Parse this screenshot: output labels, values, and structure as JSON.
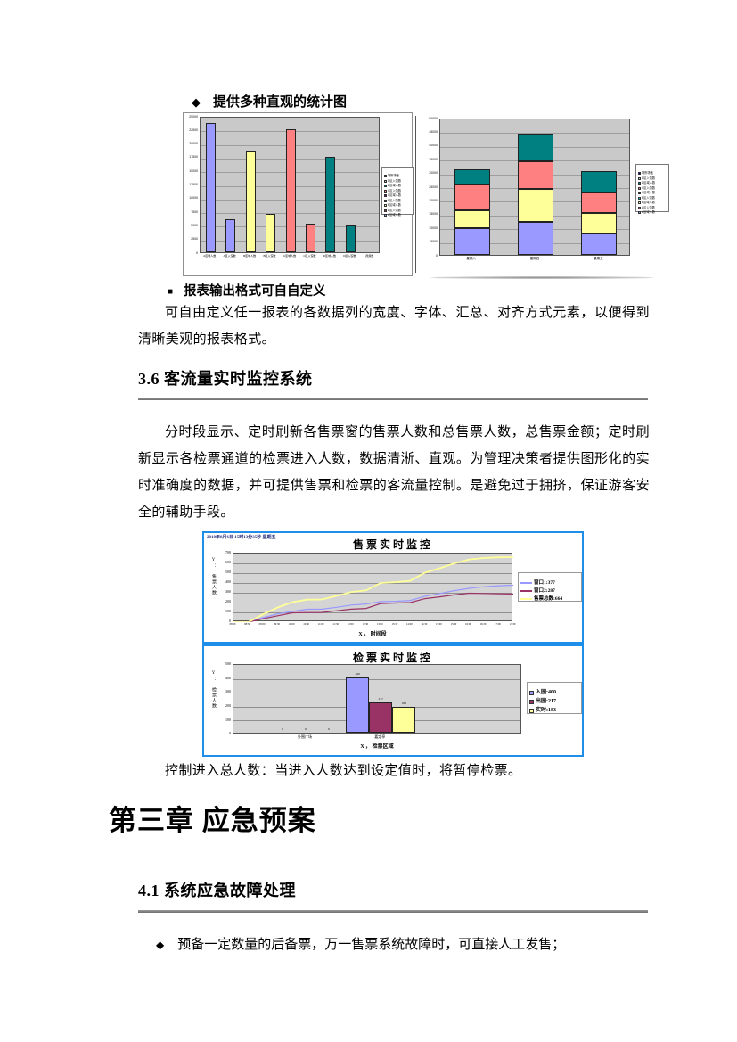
{
  "page": {
    "bullet1_marker": "◆",
    "bullet1": "提供多种直观的统计图",
    "bullet2_marker": "■",
    "bullet2": "报表输出格式可自自定义",
    "para1": "可自由定义任一报表的各数据列的宽度、字体、汇总、对齐方式元素，以便得到清晰美观的报表格式。",
    "heading_36": "3.6  客流量实时监控系统",
    "para2": "分时段显示、定时刷新各售票窗的售票人数和总售票人数，总售票金额；定时刷新显示各检票通道的检票进入人数，数据清淅、直观。为管理决策者提供图形化的实时准确度的数据，并可提供售票和检票的客流量控制。是避免过于拥挤，保证游客安全的辅助手段。",
    "caption": "控制进入总人数：当进入人数达到设定值时，将暂停检票。",
    "chapter": "第三章 应急预案",
    "heading_41": "4.1  系统应急故障处理",
    "bullet3_marker": "◆",
    "bullet3": "预备一定数量的后备票，万一售票系统故障时，可直接人工发售；"
  },
  "colors": {
    "panel_border_blue": "#1e8ee8",
    "plot_background_gray": "#c9c9c9",
    "series_blue": "#9999FF",
    "series_yellow": "#FFFF99",
    "series_salmon": "#FF8080",
    "series_teal": "#008080",
    "series_darkred": "#993366",
    "rule_gray": "#808080",
    "datetime_blue": "#1f2d7a"
  },
  "chart_data": [
    {
      "type": "bar",
      "title": "",
      "categories": [
        "A区域人数",
        "A区入馆数",
        "B区域人数",
        "B区入馆数",
        "C区域人数",
        "C区入馆数",
        "D区域人数",
        "D区入馆数",
        "视频数"
      ],
      "values": [
        23700,
        6000,
        18700,
        7000,
        22500,
        5200,
        17500,
        5000,
        0
      ],
      "bar_colors": [
        "#9999FF",
        "#9999FF",
        "#FFFF99",
        "#FFFF99",
        "#FF8080",
        "#FF8080",
        "#008080",
        "#008080",
        "#9999FF"
      ],
      "ylim": [
        0,
        25000
      ],
      "ytick_step": 2500,
      "grid": true,
      "legend_position": "right",
      "legend_items": [
        {
          "label": "场所场馆",
          "color": "#000080"
        },
        {
          "label": "D区入馆数",
          "color": "#C0C0C0"
        },
        {
          "label": "D区域人数",
          "color": "#008080"
        },
        {
          "label": "C区入馆数",
          "color": "#FF8080"
        },
        {
          "label": "C区域人数",
          "color": "#660066"
        },
        {
          "label": "B区入馆数",
          "color": "#00CCCC"
        },
        {
          "label": "B区域人数",
          "color": "#FFFF99"
        },
        {
          "label": "A区入馆数",
          "color": "#993366"
        },
        {
          "label": "A区域人数",
          "color": "#9999FF"
        }
      ]
    },
    {
      "type": "bar",
      "stacked": true,
      "title": "",
      "categories": [
        "星期六",
        "星期四",
        "星期五"
      ],
      "series": [
        {
          "name": "A区人数",
          "color": "#9999FF",
          "values": [
            9800,
            12000,
            7800
          ]
        },
        {
          "name": "B区人数",
          "color": "#FFFF99",
          "values": [
            6400,
            12000,
            7400
          ]
        },
        {
          "name": "C区人数",
          "color": "#FF8080",
          "values": [
            9600,
            10200,
            7600
          ]
        },
        {
          "name": "D区人数",
          "color": "#008080",
          "values": [
            5400,
            10000,
            7700
          ]
        }
      ],
      "ylim": [
        0,
        50000
      ],
      "ytick_step": 5000,
      "grid": true,
      "legend_position": "right",
      "legend_items": [
        {
          "label": "场所场馆",
          "color": "#000080"
        },
        {
          "label": "D区入馆数",
          "color": "#C0C0C0"
        },
        {
          "label": "D区域人数",
          "color": "#008080"
        },
        {
          "label": "C区入馆数",
          "color": "#FF8080"
        },
        {
          "label": "C区域人数",
          "color": "#660066"
        },
        {
          "label": "B区入馆数",
          "color": "#00CCCC"
        },
        {
          "label": "B区域人数",
          "color": "#FFFF99"
        },
        {
          "label": "A区入馆数",
          "color": "#993366"
        },
        {
          "label": "A区域人数",
          "color": "#9999FF"
        }
      ]
    },
    {
      "type": "line",
      "title": "售票实时监控",
      "datetime": "2010年8月6日 15时13分35秒 星期五",
      "xlabel": "X ，  时间段",
      "ylabel": "Y：  售票人数",
      "x": [
        "08:00",
        "08:30",
        "09:00",
        "09:30",
        "10:00",
        "10:30",
        "11:00",
        "11:30",
        "12:00",
        "12:30",
        "13:00",
        "13:30",
        "14:00",
        "14:30",
        "15:00",
        "15:30",
        "16:00",
        "16:30",
        "17:00",
        "17:30"
      ],
      "series": [
        {
          "name": "窗口1:377",
          "color": "#9999FF",
          "values": [
            0,
            0,
            45,
            85,
            110,
            132,
            133,
            152,
            175,
            185,
            210,
            213,
            222,
            265,
            292,
            322,
            345,
            362,
            372,
            377
          ]
        },
        {
          "name": "窗口2:287",
          "color": "#993366",
          "values": [
            0,
            0,
            35,
            65,
            95,
            98,
            99,
            116,
            133,
            140,
            190,
            195,
            200,
            240,
            258,
            278,
            295,
            293,
            290,
            287
          ]
        },
        {
          "name": "售票总数:664",
          "color": "#FFFF99",
          "values": [
            0,
            0,
            80,
            150,
            205,
            230,
            232,
            268,
            308,
            325,
            400,
            408,
            422,
            505,
            550,
            600,
            640,
            655,
            662,
            664
          ]
        }
      ],
      "ylim": [
        0,
        700
      ],
      "ytick_step": 100,
      "grid": true,
      "legend_position": "right"
    },
    {
      "type": "bar",
      "title": "检票实时监控",
      "xlabel": "X ，  检票区域",
      "ylabel": "Y：  检票人数",
      "categories": [
        "外围广场",
        "嘉定亭"
      ],
      "series": [
        {
          "name": "入园:400",
          "color": "#9999FF",
          "values": [
            0,
            400
          ]
        },
        {
          "name": "出园:217",
          "color": "#993366",
          "values": [
            0,
            217
          ]
        },
        {
          "name": "实时:183",
          "color": "#FFFF99",
          "values": [
            0,
            183
          ]
        }
      ],
      "ylim": [
        0,
        500
      ],
      "ytick_step": 100,
      "grid": true,
      "legend_position": "right",
      "show_values": true
    }
  ]
}
